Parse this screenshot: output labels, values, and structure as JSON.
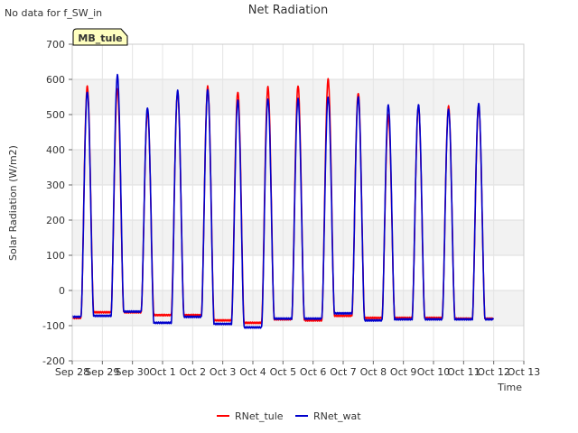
{
  "note": "No data for f_SW_in",
  "badge": "MB_tule",
  "chart_data": {
    "type": "line",
    "title": "Net Radiation",
    "xlabel": "Time",
    "ylabel": "Solar Radiation (W/m2)",
    "ylim": [
      -200,
      700
    ],
    "yticks": [
      -200,
      -100,
      0,
      100,
      200,
      300,
      400,
      500,
      600,
      700
    ],
    "xlim": [
      0,
      15
    ],
    "xtick_labels": [
      "Sep 28",
      "Sep 29",
      "Sep 30",
      "Oct 1",
      "Oct 2",
      "Oct 3",
      "Oct 4",
      "Oct 5",
      "Oct 6",
      "Oct 7",
      "Oct 8",
      "Oct 9",
      "Oct 10",
      "Oct 11",
      "Oct 12",
      "Oct 13"
    ],
    "grid": true,
    "legend_position": "bottom",
    "series": [
      {
        "name": "RNet_tule",
        "color": "#ff0000",
        "daily": [
          {
            "night": -78,
            "peak": 580
          },
          {
            "night": -62,
            "peak": 575
          },
          {
            "night": -62,
            "peak": 510
          },
          {
            "night": -70,
            "peak": 562
          },
          {
            "night": -70,
            "peak": 580
          },
          {
            "night": -85,
            "peak": 565
          },
          {
            "night": -92,
            "peak": 578
          },
          {
            "night": -82,
            "peak": 583
          },
          {
            "night": -85,
            "peak": 600
          },
          {
            "night": -72,
            "peak": 562
          },
          {
            "night": -78,
            "peak": 498
          },
          {
            "night": -78,
            "peak": 522
          },
          {
            "night": -78,
            "peak": 523
          },
          {
            "night": -80,
            "peak": 525
          }
        ]
      },
      {
        "name": "RNet_wat",
        "color": "#0000cc",
        "daily": [
          {
            "night": -75,
            "peak": 565
          },
          {
            "night": -72,
            "peak": 612
          },
          {
            "night": -60,
            "peak": 520
          },
          {
            "night": -92,
            "peak": 568
          },
          {
            "night": -75,
            "peak": 572
          },
          {
            "night": -95,
            "peak": 540
          },
          {
            "night": -105,
            "peak": 545
          },
          {
            "night": -80,
            "peak": 545
          },
          {
            "night": -80,
            "peak": 550
          },
          {
            "night": -65,
            "peak": 550
          },
          {
            "night": -85,
            "peak": 528
          },
          {
            "night": -82,
            "peak": 528
          },
          {
            "night": -82,
            "peak": 515
          },
          {
            "night": -82,
            "peak": 532
          }
        ]
      }
    ]
  }
}
